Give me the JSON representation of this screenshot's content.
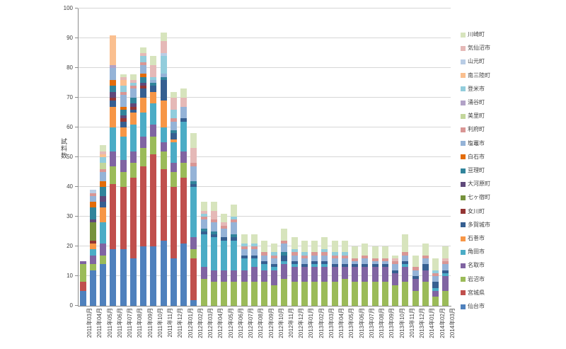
{
  "chart": {
    "y_axis_title": "試料数",
    "y_tick_labels": [
      "0",
      "10",
      "20",
      "30",
      "40",
      "50",
      "60",
      "70",
      "80",
      "90",
      "100"
    ],
    "grid": true,
    "legend_position": "right",
    "background_color": "#ffffff",
    "gridline_color": "#d6d6d6",
    "axis_color": "#8c8c8c",
    "text_color": "#404040"
  },
  "chart_data": {
    "type": "bar",
    "stacked": true,
    "title": "",
    "xlabel": "",
    "ylabel": "試料数",
    "ylim": [
      0,
      100
    ],
    "y_tick_step": 10,
    "legend_order": "reverse",
    "categories": [
      "2011年03月",
      "2011年04月",
      "2011年05月",
      "2011年06月",
      "2011年07月",
      "2011年08月",
      "2011年09月",
      "2011年10月",
      "2011年11月",
      "2011年12月",
      "2012年01月",
      "2012年02月",
      "2012年03月",
      "2012年04月",
      "2012年05月",
      "2012年06月",
      "2012年07月",
      "2012年08月",
      "2012年09月",
      "2012年10月",
      "2012年11月",
      "2012年12月",
      "2013年01月",
      "2013年02月",
      "2013年03月",
      "2013年04月",
      "2013年05月",
      "2013年06月",
      "2013年07月",
      "2013年08月",
      "2013年09月",
      "2013年10月",
      "2013年11月",
      "2013年12月",
      "2014年01月",
      "2014年02月",
      "2014年03月"
    ],
    "series": [
      {
        "name": "仙台市",
        "color": "#4f81bd",
        "values": [
          5,
          12,
          14,
          19,
          19,
          16,
          20,
          20,
          22,
          16,
          21,
          2,
          0,
          0,
          0,
          0,
          0,
          0,
          0,
          0,
          0,
          0,
          0,
          0,
          0,
          0,
          0,
          0,
          0,
          0,
          0,
          0,
          0,
          0,
          0,
          0,
          0
        ]
      },
      {
        "name": "宮城県",
        "color": "#c0504d",
        "values": [
          3,
          0,
          0,
          22,
          21,
          27,
          27,
          31,
          24,
          24,
          22,
          14,
          0,
          0,
          0,
          0,
          0,
          0,
          0,
          0,
          0,
          0,
          0,
          0,
          0,
          0,
          0,
          0,
          0,
          0,
          0,
          0,
          0,
          0,
          0,
          0,
          0
        ]
      },
      {
        "name": "岩沼市",
        "color": "#9bbb59",
        "values": [
          6,
          2,
          3,
          6,
          5,
          5,
          6,
          6,
          6,
          5,
          5,
          3,
          9,
          8,
          8,
          8,
          8,
          8,
          8,
          7,
          9,
          8,
          8,
          8,
          8,
          8,
          9,
          8,
          8,
          8,
          8,
          7,
          8,
          5,
          8,
          3,
          5
        ]
      },
      {
        "name": "名取市",
        "color": "#8064a2",
        "values": [
          1,
          3,
          4,
          5,
          4,
          4,
          4,
          4,
          3,
          3,
          4,
          4,
          4,
          4,
          4,
          4,
          4,
          5,
          4,
          5,
          5,
          5,
          5,
          5,
          5,
          5,
          4,
          5,
          5,
          5,
          5,
          4,
          5,
          4,
          4,
          2,
          5
        ]
      },
      {
        "name": "角田市",
        "color": "#4bacc6",
        "values": [
          0,
          2,
          7,
          8,
          8,
          9,
          8,
          7,
          5,
          7,
          10,
          17,
          11,
          11,
          10,
          10,
          4,
          3,
          2,
          1,
          1,
          1,
          0,
          1,
          1,
          0,
          0,
          0,
          0,
          0,
          0,
          0,
          1,
          0,
          0,
          1,
          1
        ]
      },
      {
        "name": "石巻市",
        "color": "#f79646",
        "values": [
          0,
          2,
          5,
          7,
          3,
          4,
          5,
          4,
          9,
          1,
          0,
          0,
          0,
          0,
          0,
          0,
          0,
          0,
          0,
          0,
          0,
          0,
          0,
          0,
          0,
          0,
          0,
          0,
          0,
          0,
          0,
          0,
          0,
          0,
          0,
          0,
          0
        ]
      },
      {
        "name": "多賀城市",
        "color": "#365f91",
        "values": [
          0,
          0,
          2,
          2,
          2,
          1,
          3,
          2,
          7,
          2,
          1,
          1,
          1,
          1,
          1,
          1,
          1,
          1,
          1,
          1,
          2,
          1,
          1,
          1,
          1,
          1,
          1,
          1,
          1,
          1,
          1,
          1,
          1,
          1,
          2,
          2,
          1
        ]
      },
      {
        "name": "女川町",
        "color": "#943634",
        "values": [
          0,
          1,
          0,
          1,
          1,
          1,
          1,
          0,
          0,
          0,
          0,
          0,
          0,
          0,
          0,
          0,
          0,
          0,
          0,
          0,
          0,
          0,
          0,
          0,
          0,
          0,
          0,
          0,
          0,
          0,
          0,
          0,
          0,
          0,
          0,
          0,
          0
        ]
      },
      {
        "name": "七ヶ宿町",
        "color": "#76923c",
        "values": [
          0,
          6,
          0,
          0,
          0,
          0,
          0,
          0,
          0,
          0,
          0,
          0,
          0,
          0,
          0,
          0,
          0,
          0,
          0,
          0,
          0,
          0,
          0,
          0,
          0,
          0,
          0,
          0,
          0,
          0,
          0,
          0,
          0,
          0,
          0,
          0,
          0
        ]
      },
      {
        "name": "大河原町",
        "color": "#5f497a",
        "values": [
          0,
          1,
          2,
          2,
          1,
          1,
          1,
          0,
          0,
          0,
          0,
          0,
          0,
          0,
          0,
          0,
          0,
          0,
          0,
          0,
          0,
          0,
          0,
          0,
          0,
          0,
          0,
          0,
          0,
          0,
          0,
          0,
          0,
          0,
          0,
          0,
          0
        ]
      },
      {
        "name": "亘理町",
        "color": "#31849b",
        "values": [
          0,
          4,
          3,
          2,
          2,
          2,
          2,
          1,
          1,
          1,
          0,
          1,
          1,
          1,
          0,
          1,
          0,
          0,
          0,
          0,
          1,
          0,
          0,
          0,
          0,
          0,
          0,
          0,
          0,
          0,
          0,
          0,
          0,
          0,
          0,
          0,
          0
        ]
      },
      {
        "name": "白石市",
        "color": "#e36c0a",
        "values": [
          0,
          2,
          2,
          2,
          1,
          0,
          1,
          0,
          0,
          0,
          0,
          0,
          0,
          0,
          0,
          0,
          0,
          0,
          0,
          0,
          0,
          0,
          0,
          0,
          0,
          0,
          0,
          0,
          0,
          0,
          0,
          0,
          0,
          0,
          0,
          0,
          0
        ]
      },
      {
        "name": "塩竈市",
        "color": "#95b3d7",
        "values": [
          0,
          2,
          3,
          4,
          4,
          3,
          3,
          1,
          1,
          3,
          4,
          5,
          3,
          3,
          3,
          4,
          2,
          2,
          2,
          2,
          3,
          2,
          2,
          2,
          2,
          2,
          2,
          1,
          2,
          1,
          1,
          2,
          2,
          2,
          2,
          2,
          2
        ]
      },
      {
        "name": "利府町",
        "color": "#d99694",
        "values": [
          0,
          1,
          1,
          0,
          1,
          1,
          1,
          0,
          0,
          1,
          0,
          1,
          1,
          1,
          1,
          1,
          1,
          1,
          1,
          1,
          1,
          1,
          1,
          1,
          1,
          1,
          1,
          1,
          1,
          1,
          1,
          1,
          1,
          1,
          1,
          1,
          1
        ]
      },
      {
        "name": "美里町",
        "color": "#c3d69b",
        "values": [
          0,
          0,
          2,
          0,
          0,
          0,
          0,
          0,
          0,
          0,
          0,
          0,
          0,
          0,
          0,
          0,
          0,
          0,
          0,
          0,
          0,
          0,
          0,
          0,
          0,
          0,
          0,
          0,
          0,
          0,
          0,
          0,
          0,
          0,
          0,
          0,
          0
        ]
      },
      {
        "name": "涌谷町",
        "color": "#b2a2c7",
        "values": [
          0,
          0,
          0,
          1,
          0,
          0,
          0,
          0,
          0,
          0,
          0,
          0,
          0,
          0,
          0,
          0,
          0,
          0,
          0,
          0,
          0,
          0,
          0,
          0,
          0,
          0,
          0,
          0,
          0,
          0,
          0,
          0,
          0,
          0,
          0,
          0,
          0
        ]
      },
      {
        "name": "登米市",
        "color": "#92cddc",
        "values": [
          0,
          0,
          2,
          0,
          2,
          1,
          2,
          1,
          6,
          3,
          0,
          0,
          1,
          0,
          0,
          1,
          1,
          1,
          0,
          1,
          0,
          1,
          1,
          0,
          1,
          1,
          1,
          0,
          0,
          0,
          0,
          0,
          0,
          0,
          0,
          1,
          0
        ]
      },
      {
        "name": "南三陸町",
        "color": "#fabf8f",
        "values": [
          0,
          0,
          1,
          10,
          2,
          0,
          0,
          0,
          0,
          0,
          0,
          0,
          0,
          0,
          0,
          0,
          0,
          0,
          0,
          0,
          0,
          0,
          0,
          0,
          0,
          0,
          0,
          0,
          0,
          0,
          0,
          0,
          0,
          0,
          0,
          0,
          0
        ]
      },
      {
        "name": "山元町",
        "color": "#b9cde5",
        "values": [
          0,
          1,
          0,
          0,
          0,
          0,
          0,
          0,
          1,
          0,
          0,
          0,
          0,
          0,
          0,
          0,
          0,
          0,
          0,
          0,
          0,
          0,
          0,
          0,
          0,
          0,
          0,
          0,
          0,
          0,
          0,
          0,
          0,
          0,
          0,
          0,
          0
        ]
      },
      {
        "name": "気仙沼市",
        "color": "#e5b9b7",
        "values": [
          0,
          0,
          1,
          0,
          1,
          1,
          1,
          4,
          4,
          4,
          3,
          5,
          1,
          3,
          1,
          0,
          0,
          0,
          0,
          0,
          0,
          0,
          0,
          0,
          0,
          0,
          0,
          0,
          0,
          0,
          0,
          1,
          0,
          0,
          0,
          0,
          1
        ]
      },
      {
        "name": "川崎町",
        "color": "#d7e4bd",
        "values": [
          0,
          0,
          2,
          0,
          1,
          2,
          2,
          3,
          3,
          2,
          3,
          5,
          3,
          3,
          3,
          4,
          3,
          3,
          4,
          3,
          4,
          4,
          4,
          4,
          4,
          4,
          4,
          4,
          4,
          4,
          4,
          1,
          6,
          4,
          4,
          4,
          4
        ]
      }
    ]
  }
}
